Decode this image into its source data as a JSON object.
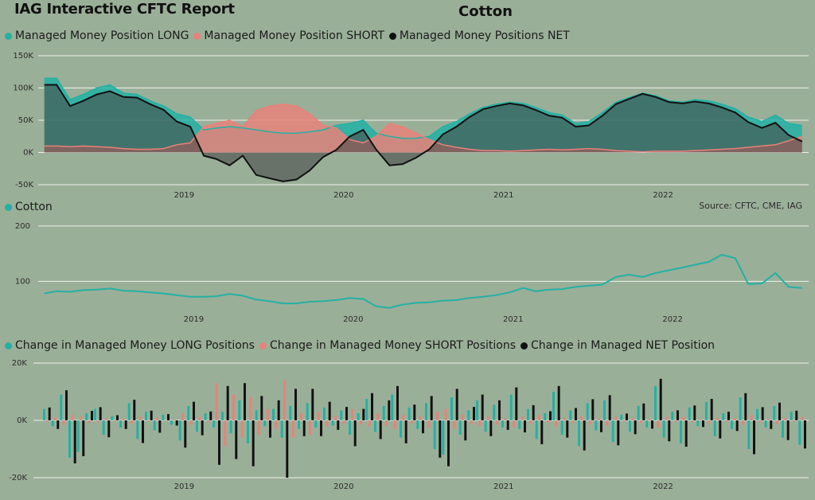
{
  "report_title": "IAG Interactive CFTC Report",
  "main_title": "Cotton",
  "source": "Source: CFTC, CME, IAG",
  "colors": {
    "long": "#23b1a4",
    "short": "#e8827a",
    "net": "#111111",
    "grid": "#eef2ec",
    "background": "#9aaf98"
  },
  "chart_data": [
    {
      "type": "area",
      "id": "positions",
      "x_range": [
        "2018-02-01",
        "2022-11-30"
      ],
      "ylim": [
        -50000,
        150000
      ],
      "y_ticks": [
        {
          "v": 150000,
          "label": "150K"
        },
        {
          "v": 100000,
          "label": "100K"
        },
        {
          "v": 50000,
          "label": "50K"
        },
        {
          "v": 0,
          "label": "0K"
        },
        {
          "v": -50000,
          "label": "-50K"
        }
      ],
      "x_ticks": [
        "2019",
        "2020",
        "2021",
        "2022"
      ],
      "series": [
        {
          "name": "Managed Money Position LONG",
          "color": "#23b1a4",
          "x": [
            "2018-02",
            "2018-03",
            "2018-04",
            "2018-05",
            "2018-06",
            "2018-07",
            "2018-08",
            "2018-09",
            "2018-10",
            "2018-11",
            "2018-12",
            "2019-01",
            "2019-02",
            "2019-03",
            "2019-04",
            "2019-05",
            "2019-06",
            "2019-07",
            "2019-08",
            "2019-09",
            "2019-10",
            "2019-11",
            "2019-12",
            "2020-01",
            "2020-02",
            "2020-03",
            "2020-04",
            "2020-05",
            "2020-06",
            "2020-07",
            "2020-08",
            "2020-09",
            "2020-10",
            "2020-11",
            "2020-12",
            "2021-01",
            "2021-02",
            "2021-03",
            "2021-04",
            "2021-05",
            "2021-06",
            "2021-07",
            "2021-08",
            "2021-09",
            "2021-10",
            "2021-11",
            "2021-12",
            "2022-01",
            "2022-02",
            "2022-03",
            "2022-04",
            "2022-05",
            "2022-06",
            "2022-07",
            "2022-08",
            "2022-09",
            "2022-10",
            "2022-11"
          ],
          "values": [
            115000,
            115000,
            82000,
            90000,
            100000,
            105000,
            92000,
            90000,
            80000,
            72000,
            60000,
            55000,
            35000,
            38000,
            40000,
            38000,
            35000,
            32000,
            30000,
            30000,
            32000,
            35000,
            42000,
            45000,
            50000,
            30000,
            25000,
            22000,
            22000,
            25000,
            40000,
            48000,
            60000,
            70000,
            75000,
            78000,
            76000,
            70000,
            62000,
            58000,
            45000,
            48000,
            62000,
            78000,
            85000,
            92000,
            88000,
            80000,
            78000,
            82000,
            80000,
            75000,
            68000,
            55000,
            48000,
            58000,
            45000,
            42000
          ]
        },
        {
          "name": "Managed Money Position SHORT",
          "color": "#e8827a",
          "x": [
            "2018-02",
            "2018-03",
            "2018-04",
            "2018-05",
            "2018-06",
            "2018-07",
            "2018-08",
            "2018-09",
            "2018-10",
            "2018-11",
            "2018-12",
            "2019-01",
            "2019-02",
            "2019-03",
            "2019-04",
            "2019-05",
            "2019-06",
            "2019-07",
            "2019-08",
            "2019-09",
            "2019-10",
            "2019-11",
            "2019-12",
            "2020-01",
            "2020-02",
            "2020-03",
            "2020-04",
            "2020-05",
            "2020-06",
            "2020-07",
            "2020-08",
            "2020-09",
            "2020-10",
            "2020-11",
            "2020-12",
            "2021-01",
            "2021-02",
            "2021-03",
            "2021-04",
            "2021-05",
            "2021-06",
            "2021-07",
            "2021-08",
            "2021-09",
            "2021-10",
            "2021-11",
            "2021-12",
            "2022-01",
            "2022-02",
            "2022-03",
            "2022-04",
            "2022-05",
            "2022-06",
            "2022-07",
            "2022-08",
            "2022-09",
            "2022-10",
            "2022-11"
          ],
          "values": [
            10000,
            10000,
            9000,
            10000,
            9000,
            8000,
            6000,
            5000,
            5000,
            6000,
            12000,
            15000,
            40000,
            45000,
            50000,
            40000,
            65000,
            72000,
            75000,
            72000,
            60000,
            42000,
            38000,
            20000,
            15000,
            25000,
            45000,
            40000,
            30000,
            20000,
            12000,
            8000,
            5000,
            3000,
            3000,
            2000,
            3000,
            4000,
            5000,
            4000,
            5000,
            6000,
            5000,
            3000,
            2000,
            1000,
            2000,
            2000,
            2000,
            3000,
            4000,
            5000,
            6000,
            8000,
            10000,
            12000,
            18000,
            25000
          ]
        },
        {
          "name": "Managed Money Positions NET",
          "color": "#111111",
          "x": [
            "2018-02",
            "2018-03",
            "2018-04",
            "2018-05",
            "2018-06",
            "2018-07",
            "2018-08",
            "2018-09",
            "2018-10",
            "2018-11",
            "2018-12",
            "2019-01",
            "2019-02",
            "2019-03",
            "2019-04",
            "2019-05",
            "2019-06",
            "2019-07",
            "2019-08",
            "2019-09",
            "2019-10",
            "2019-11",
            "2019-12",
            "2020-01",
            "2020-02",
            "2020-03",
            "2020-04",
            "2020-05",
            "2020-06",
            "2020-07",
            "2020-08",
            "2020-09",
            "2020-10",
            "2020-11",
            "2020-12",
            "2021-01",
            "2021-02",
            "2021-03",
            "2021-04",
            "2021-05",
            "2021-06",
            "2021-07",
            "2021-08",
            "2021-09",
            "2021-10",
            "2021-11",
            "2021-12",
            "2022-01",
            "2022-02",
            "2022-03",
            "2022-04",
            "2022-05",
            "2022-06",
            "2022-07",
            "2022-08",
            "2022-09",
            "2022-10",
            "2022-11"
          ],
          "values": [
            105000,
            105000,
            72000,
            80000,
            90000,
            95000,
            86000,
            85000,
            75000,
            66000,
            48000,
            40000,
            -5000,
            -10000,
            -20000,
            -5000,
            -35000,
            -40000,
            -45000,
            -42000,
            -28000,
            -7000,
            4000,
            25000,
            35000,
            5000,
            -20000,
            -18000,
            -8000,
            5000,
            28000,
            40000,
            55000,
            67000,
            72000,
            76000,
            73000,
            66000,
            57000,
            54000,
            40000,
            42000,
            57000,
            75000,
            83000,
            91000,
            86000,
            78000,
            76000,
            79000,
            76000,
            70000,
            62000,
            47000,
            38000,
            46000,
            27000,
            17000
          ]
        }
      ]
    },
    {
      "type": "line",
      "id": "price",
      "ylim": [
        40,
        220
      ],
      "y_ticks": [
        {
          "v": 200,
          "label": "200"
        },
        {
          "v": 100,
          "label": "100"
        }
      ],
      "x_ticks": [
        "2019",
        "2020",
        "2021",
        "2022"
      ],
      "series": [
        {
          "name": "Cotton",
          "color": "#23b1a4",
          "x": [
            "2018-02",
            "2018-03",
            "2018-04",
            "2018-05",
            "2018-06",
            "2018-07",
            "2018-08",
            "2018-09",
            "2018-10",
            "2018-11",
            "2018-12",
            "2019-01",
            "2019-02",
            "2019-03",
            "2019-04",
            "2019-05",
            "2019-06",
            "2019-07",
            "2019-08",
            "2019-09",
            "2019-10",
            "2019-11",
            "2019-12",
            "2020-01",
            "2020-02",
            "2020-03",
            "2020-04",
            "2020-05",
            "2020-06",
            "2020-07",
            "2020-08",
            "2020-09",
            "2020-10",
            "2020-11",
            "2020-12",
            "2021-01",
            "2021-02",
            "2021-03",
            "2021-04",
            "2021-05",
            "2021-06",
            "2021-07",
            "2021-08",
            "2021-09",
            "2021-10",
            "2021-11",
            "2021-12",
            "2022-01",
            "2022-02",
            "2022-03",
            "2022-04",
            "2022-05",
            "2022-06",
            "2022-07",
            "2022-08",
            "2022-09",
            "2022-10",
            "2022-11"
          ],
          "values": [
            78,
            82,
            81,
            84,
            85,
            87,
            83,
            82,
            80,
            78,
            75,
            72,
            72,
            73,
            77,
            74,
            67,
            64,
            60,
            60,
            63,
            64,
            66,
            70,
            68,
            55,
            52,
            58,
            61,
            62,
            65,
            66,
            70,
            72,
            75,
            80,
            88,
            82,
            85,
            86,
            90,
            92,
            94,
            108,
            112,
            108,
            115,
            120,
            125,
            130,
            135,
            148,
            142,
            95,
            96,
            115,
            90,
            88
          ]
        }
      ]
    },
    {
      "type": "bar",
      "id": "changes",
      "ylim": [
        -20000,
        20000
      ],
      "y_ticks": [
        {
          "v": 20000,
          "label": "20K"
        },
        {
          "v": 0,
          "label": "0K"
        },
        {
          "v": -20000,
          "label": "-20K"
        }
      ],
      "x_ticks": [
        "2019",
        "2020",
        "2021",
        "2022"
      ],
      "series": [
        {
          "name": "Change in Managed Money LONG Positions",
          "color": "#23b1a4"
        },
        {
          "name": "Change in Managed Money SHORT Positions",
          "color": "#e8827a"
        },
        {
          "name": "Change in Managed NET Position",
          "color": "#111111"
        }
      ],
      "weekly_changes": [
        [
          4000,
          -500,
          4500
        ],
        [
          -2000,
          1000,
          -3000
        ],
        [
          9000,
          -1500,
          10500
        ],
        [
          -13000,
          2000,
          -15000
        ],
        [
          -11000,
          1500,
          -12500
        ],
        [
          2500,
          -800,
          3300
        ],
        [
          4000,
          -600,
          4600
        ],
        [
          -5000,
          900,
          -5900
        ],
        [
          1500,
          -300,
          1800
        ],
        [
          -2500,
          500,
          -3000
        ],
        [
          6000,
          -1200,
          7200
        ],
        [
          -6500,
          1400,
          -7900
        ],
        [
          3000,
          -400,
          3400
        ],
        [
          -3500,
          800,
          -4300
        ],
        [
          2000,
          -200,
          2200
        ],
        [
          -1500,
          300,
          -1800
        ],
        [
          -7000,
          2500,
          -9500
        ],
        [
          5000,
          -1500,
          6500
        ],
        [
          -4000,
          1200,
          -5200
        ],
        [
          2500,
          -600,
          3100
        ],
        [
          -2500,
          13000,
          -15500
        ],
        [
          3000,
          -9000,
          12000
        ],
        [
          -4500,
          9000,
          -13500
        ],
        [
          7000,
          -6000,
          13000
        ],
        [
          -8000,
          8000,
          -16000
        ],
        [
          3500,
          -5000,
          8500
        ],
        [
          -2000,
          4000,
          -6000
        ],
        [
          4000,
          -3000,
          7000
        ],
        [
          -6000,
          14000,
          -20000
        ],
        [
          5000,
          -6000,
          11000
        ],
        [
          -3000,
          2500,
          -5500
        ],
        [
          6000,
          -5000,
          11000
        ],
        [
          -2500,
          3000,
          -5500
        ],
        [
          4500,
          -2000,
          6500
        ],
        [
          -1800,
          1500,
          -3300
        ],
        [
          3500,
          -1200,
          4700
        ],
        [
          -5000,
          4000,
          -9000
        ],
        [
          2500,
          -1500,
          4000
        ],
        [
          7500,
          -2000,
          9500
        ],
        [
          -4000,
          2500,
          -6500
        ],
        [
          5000,
          -2000,
          7000
        ],
        [
          9000,
          -3000,
          12000
        ],
        [
          -6000,
          2000,
          -8000
        ],
        [
          4500,
          -1000,
          5500
        ],
        [
          -3000,
          1500,
          -4500
        ],
        [
          6000,
          -2500,
          8500
        ],
        [
          -10000,
          3000,
          -13000
        ],
        [
          -12000,
          4000,
          -16000
        ],
        [
          8000,
          -3000,
          11000
        ],
        [
          -5000,
          2000,
          -7000
        ],
        [
          3500,
          -1200,
          4700
        ],
        [
          7000,
          -2000,
          9000
        ],
        [
          -4000,
          1500,
          -5500
        ],
        [
          5500,
          -1500,
          7000
        ],
        [
          -2500,
          800,
          -3300
        ],
        [
          9000,
          -2500,
          11500
        ],
        [
          -3000,
          1200,
          -4200
        ],
        [
          4000,
          -1300,
          5300
        ],
        [
          -6500,
          1800,
          -8300
        ],
        [
          2500,
          -700,
          3200
        ],
        [
          10000,
          -2000,
          12000
        ],
        [
          -5000,
          1000,
          -6000
        ],
        [
          3500,
          -800,
          4300
        ],
        [
          -9000,
          1500,
          -10500
        ],
        [
          6000,
          -1400,
          7400
        ],
        [
          -3500,
          600,
          -4100
        ],
        [
          7000,
          -1800,
          8800
        ],
        [
          -7500,
          1200,
          -8700
        ],
        [
          2000,
          -400,
          2400
        ],
        [
          -4000,
          800,
          -4800
        ],
        [
          5000,
          -900,
          5900
        ],
        [
          -2500,
          400,
          -2900
        ],
        [
          12000,
          -2500,
          14500
        ],
        [
          -6000,
          1300,
          -7300
        ],
        [
          3000,
          -500,
          3500
        ],
        [
          -8000,
          1200,
          -9200
        ],
        [
          4500,
          -700,
          5200
        ],
        [
          -2000,
          300,
          -2300
        ],
        [
          6500,
          -1000,
          7500
        ],
        [
          -5500,
          800,
          -6300
        ],
        [
          2500,
          -500,
          3000
        ],
        [
          -3000,
          700,
          -3700
        ],
        [
          8000,
          -1500,
          9500
        ],
        [
          -10000,
          1800,
          -11800
        ],
        [
          4000,
          -600,
          4600
        ],
        [
          -2500,
          500,
          -3000
        ],
        [
          5000,
          -1200,
          6200
        ],
        [
          -6000,
          900,
          -6900
        ],
        [
          3000,
          -400,
          3400
        ],
        [
          -8500,
          1300,
          -9800
        ]
      ]
    }
  ]
}
